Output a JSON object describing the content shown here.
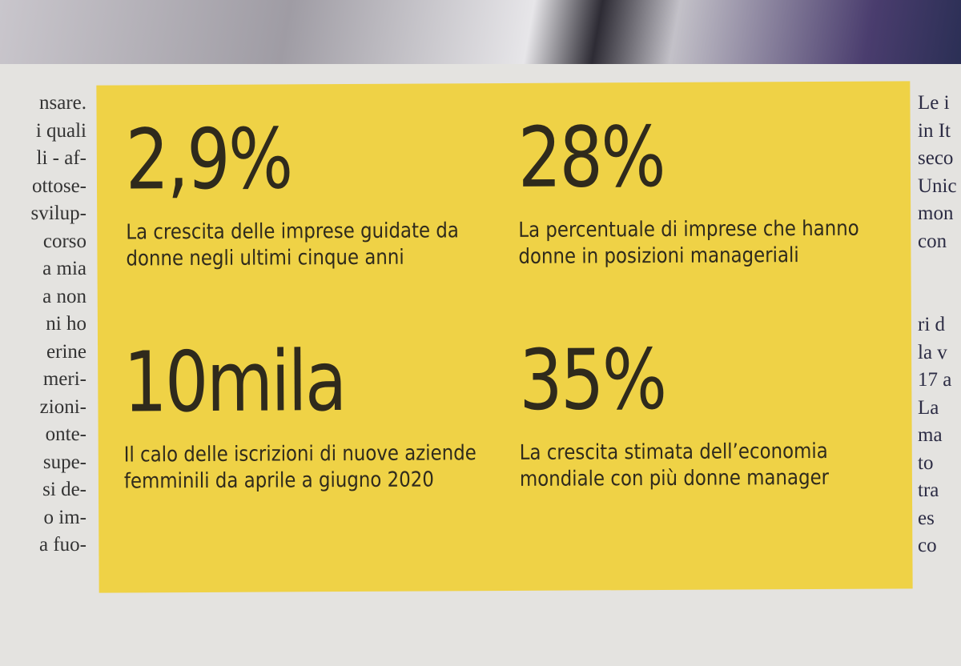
{
  "left_column": [
    "nsare.",
    "i quali",
    "li - af-",
    "ottose-",
    "svilup-",
    "corso",
    "a mia",
    "a non",
    "ni ho",
    "erine",
    "meri-",
    "zioni-",
    "onte-",
    "supe-",
    "si de-",
    "o im-",
    "a fuo-"
  ],
  "right_column": {
    "top": [
      "Le i",
      "in It",
      "seco",
      "Unic",
      "mon",
      "con"
    ],
    "bottom": [
      "ri d",
      "la v",
      "17 a",
      "La",
      "ma",
      "to",
      "tra",
      "es",
      "co"
    ]
  },
  "stats": [
    {
      "figure": "2,9%",
      "text": "La crescita delle imprese guidate da donne negli ultimi cinque anni"
    },
    {
      "figure": "28%",
      "text": "La percentuale di imprese che hanno donne in posizioni manageriali"
    },
    {
      "figure": "10mila",
      "text": "Il calo delle iscrizioni di nuove aziende femminili da aprile a giugno 2020"
    },
    {
      "figure": "35%",
      "text": "La crescita stimata dell’economia mondiale con più donne manager"
    }
  ]
}
